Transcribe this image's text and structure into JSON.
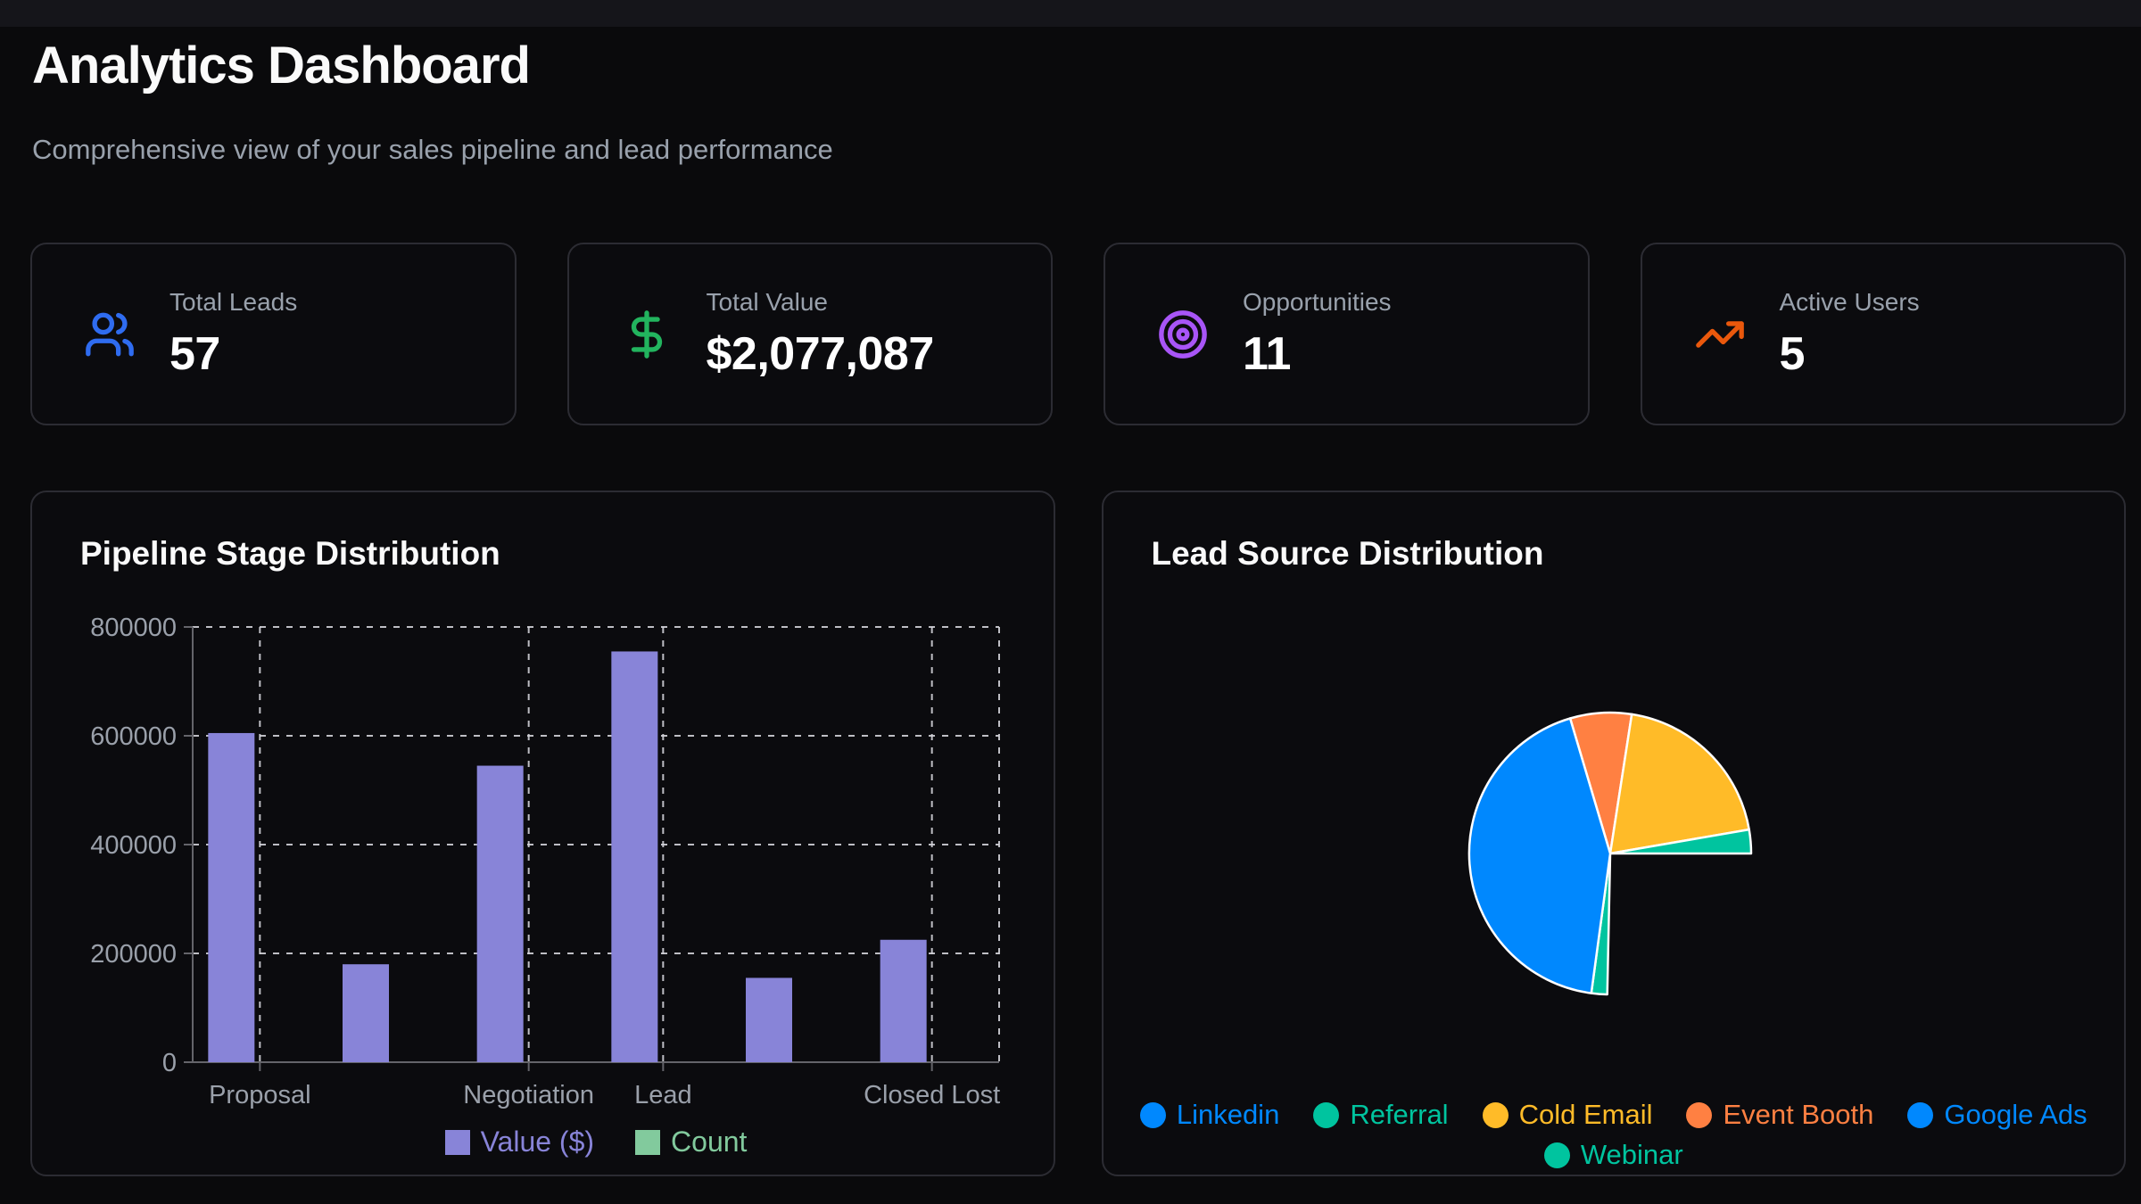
{
  "header": {
    "title": "Analytics Dashboard",
    "subtitle": "Comprehensive view of your sales pipeline and lead performance"
  },
  "stats": [
    {
      "label": "Total Leads",
      "value": "57",
      "icon": "users-icon",
      "color": "#2f6cf0"
    },
    {
      "label": "Total Value",
      "value": "$2,077,087",
      "icon": "dollar-icon",
      "color": "#22b45e"
    },
    {
      "label": "Opportunities",
      "value": "11",
      "icon": "target-icon",
      "color": "#a855f7"
    },
    {
      "label": "Active Users",
      "value": "5",
      "icon": "trending-up-icon",
      "color": "#ea580c"
    }
  ],
  "chart_data": [
    {
      "id": "pipeline",
      "type": "bar",
      "title": "Pipeline Stage Distribution",
      "categories": [
        "Proposal",
        "",
        "Negotiation",
        "Lead",
        "",
        "Closed Lost"
      ],
      "visible_x_tick_indices": [
        0,
        2,
        3,
        5
      ],
      "series": [
        {
          "name": "Value ($)",
          "color": "#8884d8",
          "values": [
            605000,
            180000,
            545000,
            755000,
            155000,
            225000
          ]
        },
        {
          "name": "Count",
          "color": "#82ca9d",
          "values": [
            0,
            0,
            0,
            0,
            0,
            0
          ],
          "note": "count bars are rendered but too small to be visible at the 0-800000 axis scale"
        }
      ],
      "ylabel": "",
      "xlabel": "",
      "ylim": [
        0,
        800000
      ],
      "yticks": [
        0,
        200000,
        400000,
        600000,
        800000
      ],
      "grid": "dashed",
      "legend_position": "bottom"
    },
    {
      "id": "lead-source",
      "type": "pie",
      "title": "Lead Source Distribution",
      "legend": [
        {
          "label": "Linkedin",
          "color": "#0088FE"
        },
        {
          "label": "Referral",
          "color": "#00C49F"
        },
        {
          "label": "Cold Email",
          "color": "#FFBB28"
        },
        {
          "label": "Event Booth",
          "color": "#FF8042"
        },
        {
          "label": "Google Ads",
          "color": "#0088FE"
        },
        {
          "label": "Webinar",
          "color": "#00C49F"
        }
      ],
      "legend_rows": [
        [
          0,
          1,
          2,
          3,
          4
        ],
        [
          5
        ]
      ],
      "segments": [
        {
          "label": "Event Booth",
          "color": "#FF8042",
          "start_deg": -16.5,
          "end_deg": 8.8,
          "percent_est": 9.4
        },
        {
          "label": "Cold Email",
          "color": "#FFBB28",
          "start_deg": 8.8,
          "end_deg": 80.2,
          "percent_est": 26.5
        },
        {
          "label": "Referral",
          "color": "#00C49F",
          "start_deg": 80.2,
          "end_deg": 90,
          "percent_est": 3.6
        },
        {
          "label": "Webinar",
          "color": "#00C49F",
          "start_deg": 181.2,
          "end_deg": 187.7,
          "percent_est": 2.4
        },
        {
          "label": "Google Ads",
          "color": "#0088FE",
          "start_deg": 187.7,
          "end_deg": 343.5,
          "percent_est": 57.9
        }
      ],
      "angles_note": "degrees clockwise from 12 o'clock; sector 90 to 181.2 (bottom-right quadrant) is empty, Linkedin share not visible"
    }
  ],
  "theme": {
    "page_bg": "#0a0a0c",
    "top_band_bg": "#15151a",
    "card_bg": "#0b0b0e",
    "card_border": "#2c2c33",
    "title_color": "#fafafa",
    "muted_color": "#99a1ac",
    "axis_line_color": "#64646a",
    "axis_tick_text_color": "#9aa0aa",
    "grid_dash_color": "#d2d2d8",
    "pie_slice_stroke": "#ffffff"
  }
}
